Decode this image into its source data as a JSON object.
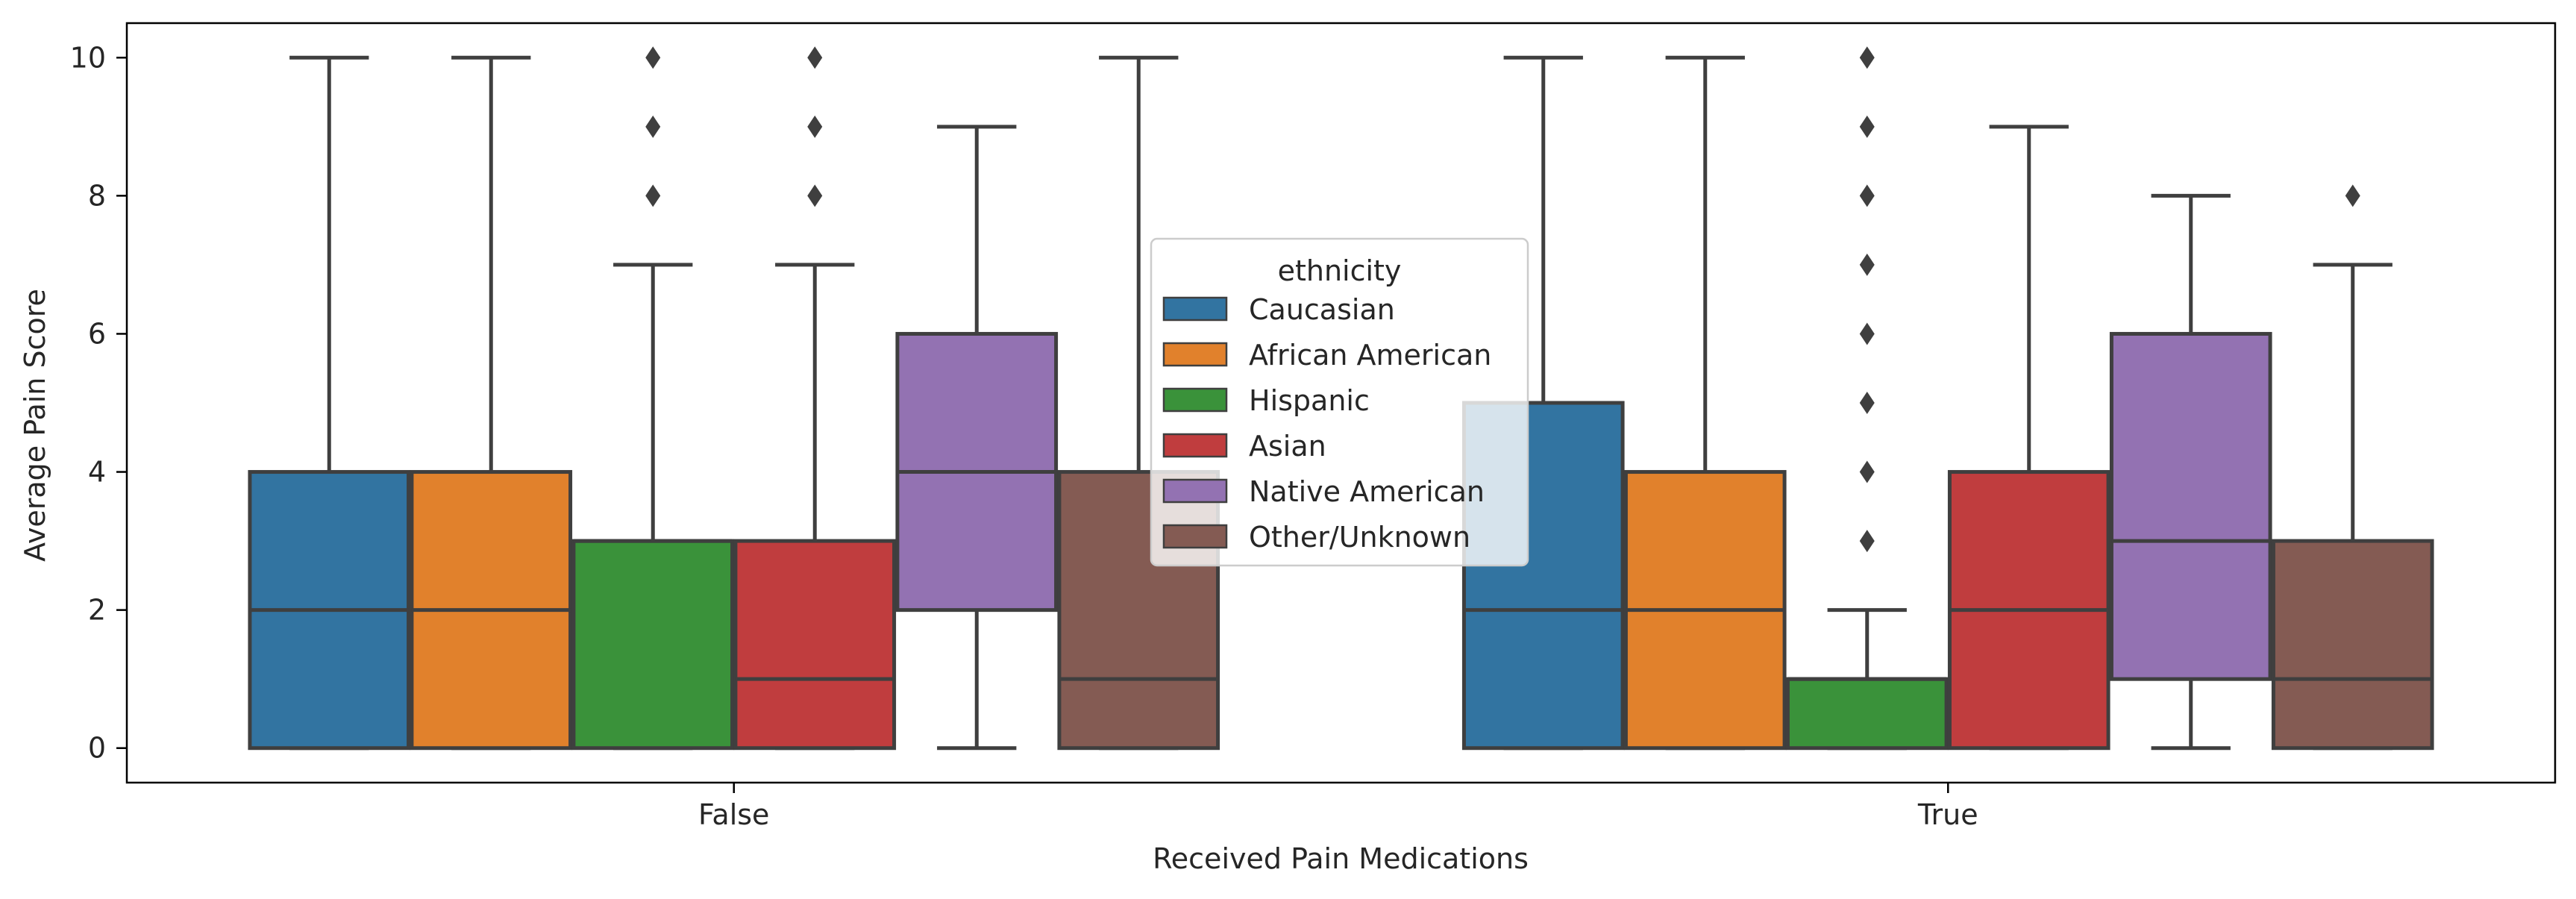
{
  "chart_data": {
    "type": "boxplot",
    "title": "",
    "xlabel": "Received Pain Medications",
    "ylabel": "Average Pain Score",
    "ylim": [
      -0.5,
      10.5
    ],
    "yticks": [
      0,
      2,
      4,
      6,
      8,
      10
    ],
    "categories": [
      "False",
      "True"
    ],
    "grid": false,
    "legend": {
      "title": "ethnicity",
      "placement": "center"
    },
    "series": [
      {
        "name": "Caucasian",
        "color": "#3274a1",
        "boxes": [
          {
            "whisker_low": 0,
            "q1": 0,
            "median": 2,
            "q3": 4,
            "whisker_high": 10,
            "outliers": []
          },
          {
            "whisker_low": 0,
            "q1": 0,
            "median": 2,
            "q3": 5,
            "whisker_high": 10,
            "outliers": []
          }
        ]
      },
      {
        "name": "African American",
        "color": "#e1812c",
        "boxes": [
          {
            "whisker_low": 0,
            "q1": 0,
            "median": 2,
            "q3": 4,
            "whisker_high": 10,
            "outliers": []
          },
          {
            "whisker_low": 0,
            "q1": 0,
            "median": 2,
            "q3": 4,
            "whisker_high": 10,
            "outliers": []
          }
        ]
      },
      {
        "name": "Hispanic",
        "color": "#3a923a",
        "boxes": [
          {
            "whisker_low": 0,
            "q1": 0,
            "median": 3,
            "q3": 3,
            "whisker_high": 7,
            "outliers": [
              8,
              9,
              10
            ]
          },
          {
            "whisker_low": 0,
            "q1": 0,
            "median": 1,
            "q3": 1,
            "whisker_high": 2,
            "outliers": [
              3,
              4,
              5,
              6,
              7,
              8,
              9,
              10
            ]
          }
        ]
      },
      {
        "name": "Asian",
        "color": "#c03d3e",
        "boxes": [
          {
            "whisker_low": 0,
            "q1": 0,
            "median": 1,
            "q3": 3,
            "whisker_high": 7,
            "outliers": [
              8,
              9,
              10
            ]
          },
          {
            "whisker_low": 0,
            "q1": 0,
            "median": 2,
            "q3": 4,
            "whisker_high": 9,
            "outliers": []
          }
        ]
      },
      {
        "name": "Native American",
        "color": "#9372b2",
        "boxes": [
          {
            "whisker_low": 0,
            "q1": 2,
            "median": 4,
            "q3": 6,
            "whisker_high": 9,
            "outliers": []
          },
          {
            "whisker_low": 0,
            "q1": 1,
            "median": 3,
            "q3": 6,
            "whisker_high": 8,
            "outliers": []
          }
        ]
      },
      {
        "name": "Other/Unknown",
        "color": "#845b53",
        "boxes": [
          {
            "whisker_low": 0,
            "q1": 0,
            "median": 1,
            "q3": 4,
            "whisker_high": 10,
            "outliers": []
          },
          {
            "whisker_low": 0,
            "q1": 0,
            "median": 1,
            "q3": 3,
            "whisker_high": 7,
            "outliers": [
              8
            ]
          }
        ]
      }
    ]
  }
}
